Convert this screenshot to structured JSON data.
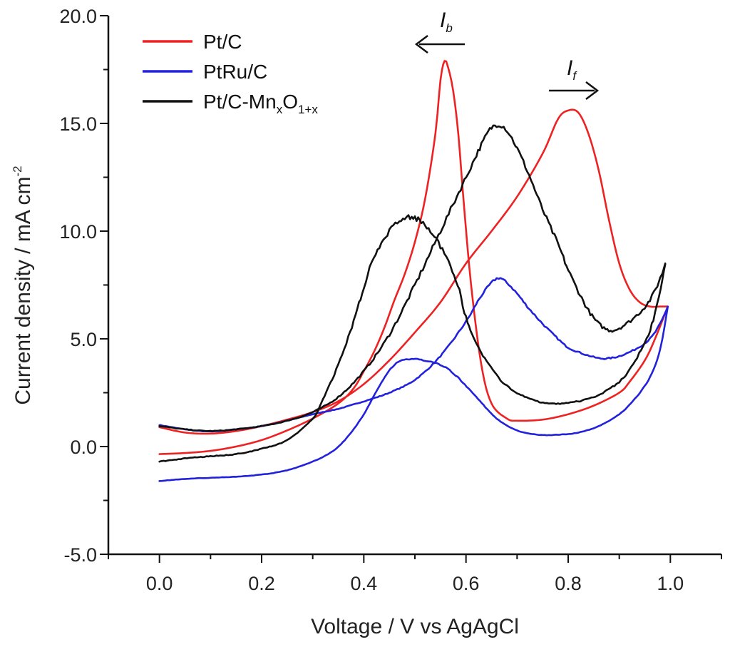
{
  "chart_data": {
    "type": "line",
    "xlabel": "Voltage / V vs AgAgCl",
    "ylabel": "Current density / mA cm",
    "ylabel_sup": "-2",
    "xlim": [
      -0.1,
      1.1
    ],
    "ylim": [
      -5.0,
      20.0
    ],
    "x_ticks": [
      0.0,
      0.2,
      0.4,
      0.6,
      0.8,
      1.0
    ],
    "x_tick_labels": [
      "0.0",
      "0.2",
      "0.4",
      "0.6",
      "0.8",
      "1.0"
    ],
    "y_ticks": [
      -5.0,
      0.0,
      5.0,
      10.0,
      15.0,
      20.0
    ],
    "y_tick_labels": [
      "-5.0",
      "0.0",
      "5.0",
      "10.0",
      "15.0",
      "20.0"
    ],
    "legend": [
      {
        "label": "Pt/C",
        "color": "#ee2222"
      },
      {
        "label": "PtRu/C",
        "color": "#2222dd"
      },
      {
        "label_main": "Pt/C-Mn",
        "label_sub1": "x",
        "label_mid": "O",
        "label_sub2": "1+x",
        "color": "#111111"
      }
    ],
    "annotations": {
      "backward": {
        "text": "I",
        "sub": "b",
        "direction": "left"
      },
      "forward": {
        "text": "I",
        "sub": "f",
        "direction": "right"
      }
    },
    "series": [
      {
        "name": "Pt/C",
        "color": "#ee2222",
        "noise": 0,
        "forward": [
          [
            0.0,
            0.9
          ],
          [
            0.05,
            0.65
          ],
          [
            0.1,
            0.6
          ],
          [
            0.15,
            0.72
          ],
          [
            0.2,
            0.95
          ],
          [
            0.25,
            1.25
          ],
          [
            0.3,
            1.6
          ],
          [
            0.35,
            2.1
          ],
          [
            0.4,
            2.9
          ],
          [
            0.45,
            4.0
          ],
          [
            0.5,
            5.3
          ],
          [
            0.55,
            6.7
          ],
          [
            0.6,
            8.5
          ],
          [
            0.65,
            10.0
          ],
          [
            0.7,
            11.6
          ],
          [
            0.75,
            13.6
          ],
          [
            0.78,
            15.2
          ],
          [
            0.8,
            15.6
          ],
          [
            0.82,
            15.5
          ],
          [
            0.84,
            14.5
          ],
          [
            0.86,
            12.8
          ],
          [
            0.88,
            10.5
          ],
          [
            0.9,
            8.5
          ],
          [
            0.92,
            7.3
          ],
          [
            0.94,
            6.7
          ],
          [
            0.96,
            6.5
          ],
          [
            0.98,
            6.5
          ],
          [
            0.995,
            6.5
          ]
        ],
        "backward": [
          [
            0.995,
            6.5
          ],
          [
            0.97,
            5.0
          ],
          [
            0.95,
            4.0
          ],
          [
            0.92,
            3.0
          ],
          [
            0.9,
            2.5
          ],
          [
            0.85,
            1.9
          ],
          [
            0.8,
            1.5
          ],
          [
            0.75,
            1.25
          ],
          [
            0.7,
            1.2
          ],
          [
            0.68,
            1.3
          ],
          [
            0.65,
            2.0
          ],
          [
            0.63,
            3.8
          ],
          [
            0.61,
            7.5
          ],
          [
            0.595,
            11.5
          ],
          [
            0.585,
            14.5
          ],
          [
            0.575,
            16.5
          ],
          [
            0.565,
            17.6
          ],
          [
            0.558,
            17.9
          ],
          [
            0.55,
            17.0
          ],
          [
            0.54,
            14.5
          ],
          [
            0.52,
            11.5
          ],
          [
            0.5,
            9.5
          ],
          [
            0.48,
            8.0
          ],
          [
            0.46,
            6.8
          ],
          [
            0.44,
            5.5
          ],
          [
            0.42,
            4.4
          ],
          [
            0.4,
            3.5
          ],
          [
            0.38,
            2.7
          ],
          [
            0.35,
            2.0
          ],
          [
            0.3,
            1.3
          ],
          [
            0.25,
            0.75
          ],
          [
            0.2,
            0.3
          ],
          [
            0.15,
            0.0
          ],
          [
            0.1,
            -0.2
          ],
          [
            0.05,
            -0.3
          ],
          [
            0.0,
            -0.35
          ]
        ]
      },
      {
        "name": "PtRu/C",
        "color": "#2222dd",
        "noise": 0.12,
        "forward": [
          [
            0.0,
            1.0
          ],
          [
            0.05,
            0.8
          ],
          [
            0.1,
            0.7
          ],
          [
            0.15,
            0.8
          ],
          [
            0.2,
            0.95
          ],
          [
            0.25,
            1.2
          ],
          [
            0.3,
            1.5
          ],
          [
            0.35,
            1.75
          ],
          [
            0.4,
            2.1
          ],
          [
            0.45,
            2.5
          ],
          [
            0.5,
            3.1
          ],
          [
            0.55,
            4.2
          ],
          [
            0.6,
            5.8
          ],
          [
            0.63,
            7.0
          ],
          [
            0.66,
            7.8
          ],
          [
            0.68,
            7.6
          ],
          [
            0.7,
            7.1
          ],
          [
            0.72,
            6.5
          ],
          [
            0.75,
            5.7
          ],
          [
            0.78,
            5.0
          ],
          [
            0.8,
            4.6
          ],
          [
            0.83,
            4.3
          ],
          [
            0.86,
            4.1
          ],
          [
            0.88,
            4.1
          ],
          [
            0.9,
            4.2
          ],
          [
            0.93,
            4.5
          ],
          [
            0.96,
            5.0
          ],
          [
            0.98,
            5.7
          ],
          [
            0.995,
            6.5
          ]
        ],
        "backward": [
          [
            0.995,
            6.5
          ],
          [
            0.98,
            4.5
          ],
          [
            0.96,
            3.2
          ],
          [
            0.93,
            2.2
          ],
          [
            0.9,
            1.5
          ],
          [
            0.86,
            0.95
          ],
          [
            0.82,
            0.65
          ],
          [
            0.78,
            0.55
          ],
          [
            0.74,
            0.55
          ],
          [
            0.7,
            0.75
          ],
          [
            0.66,
            1.3
          ],
          [
            0.62,
            2.3
          ],
          [
            0.58,
            3.3
          ],
          [
            0.55,
            3.8
          ],
          [
            0.52,
            4.0
          ],
          [
            0.49,
            4.05
          ],
          [
            0.46,
            3.8
          ],
          [
            0.43,
            2.8
          ],
          [
            0.4,
            1.5
          ],
          [
            0.37,
            0.5
          ],
          [
            0.34,
            -0.2
          ],
          [
            0.3,
            -0.7
          ],
          [
            0.25,
            -1.1
          ],
          [
            0.2,
            -1.3
          ],
          [
            0.15,
            -1.4
          ],
          [
            0.1,
            -1.45
          ],
          [
            0.05,
            -1.5
          ],
          [
            0.0,
            -1.6
          ]
        ]
      },
      {
        "name": "Pt/C-MnxO1+x",
        "color": "#111111",
        "noise": 0.22,
        "forward": [
          [
            0.0,
            0.95
          ],
          [
            0.05,
            0.8
          ],
          [
            0.1,
            0.72
          ],
          [
            0.15,
            0.8
          ],
          [
            0.2,
            0.95
          ],
          [
            0.25,
            1.2
          ],
          [
            0.3,
            1.6
          ],
          [
            0.35,
            2.3
          ],
          [
            0.4,
            3.5
          ],
          [
            0.45,
            5.2
          ],
          [
            0.5,
            7.5
          ],
          [
            0.55,
            10.0
          ],
          [
            0.6,
            12.5
          ],
          [
            0.63,
            14.0
          ],
          [
            0.65,
            14.8
          ],
          [
            0.67,
            14.9
          ],
          [
            0.69,
            14.3
          ],
          [
            0.72,
            12.8
          ],
          [
            0.75,
            11.0
          ],
          [
            0.78,
            9.4
          ],
          [
            0.8,
            8.2
          ],
          [
            0.82,
            7.2
          ],
          [
            0.84,
            6.3
          ],
          [
            0.86,
            5.7
          ],
          [
            0.88,
            5.4
          ],
          [
            0.9,
            5.5
          ],
          [
            0.93,
            6.0
          ],
          [
            0.96,
            6.8
          ],
          [
            0.98,
            7.8
          ],
          [
            0.99,
            8.5
          ]
        ],
        "backward": [
          [
            0.99,
            8.5
          ],
          [
            0.97,
            6.2
          ],
          [
            0.95,
            4.8
          ],
          [
            0.92,
            3.6
          ],
          [
            0.9,
            3.0
          ],
          [
            0.86,
            2.4
          ],
          [
            0.82,
            2.1
          ],
          [
            0.78,
            2.0
          ],
          [
            0.74,
            2.1
          ],
          [
            0.7,
            2.5
          ],
          [
            0.66,
            3.3
          ],
          [
            0.62,
            4.8
          ],
          [
            0.6,
            6.0
          ],
          [
            0.58,
            7.8
          ],
          [
            0.55,
            9.3
          ],
          [
            0.52,
            10.3
          ],
          [
            0.5,
            10.6
          ],
          [
            0.48,
            10.6
          ],
          [
            0.45,
            10.0
          ],
          [
            0.42,
            8.8
          ],
          [
            0.4,
            7.4
          ],
          [
            0.38,
            5.8
          ],
          [
            0.35,
            3.8
          ],
          [
            0.32,
            2.2
          ],
          [
            0.3,
            1.3
          ],
          [
            0.25,
            0.3
          ],
          [
            0.2,
            -0.1
          ],
          [
            0.15,
            -0.35
          ],
          [
            0.1,
            -0.45
          ],
          [
            0.05,
            -0.55
          ],
          [
            0.0,
            -0.7
          ]
        ]
      }
    ]
  }
}
